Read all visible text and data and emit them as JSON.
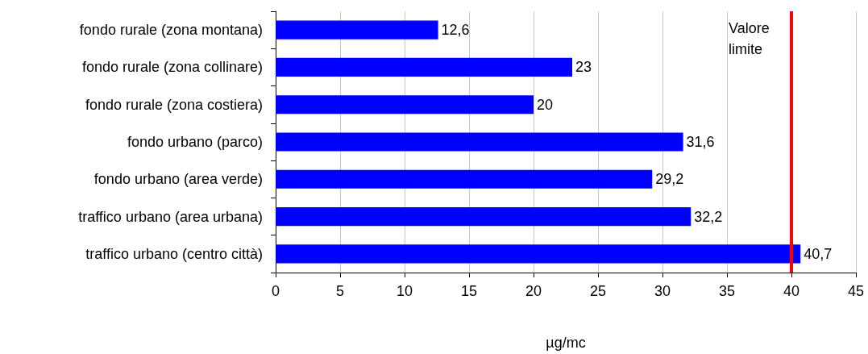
{
  "chart_data": {
    "type": "bar",
    "orientation": "horizontal",
    "xlabel": "µg/mc",
    "categories": [
      "fondo rurale (zona montana)",
      "fondo rurale (zona collinare)",
      "fondo rurale (zona costiera)",
      "fondo urbano (parco)",
      "fondo urbano (area verde)",
      "traffico urbano (area urbana)",
      "traffico urbano (centro città)"
    ],
    "values": [
      12.6,
      23,
      20,
      31.6,
      29.2,
      32.2,
      40.7
    ],
    "color": "#0000ff",
    "xlim": [
      0,
      45
    ],
    "xticks": [
      0,
      5,
      10,
      15,
      20,
      25,
      30,
      35,
      40,
      45
    ],
    "grid": "x",
    "value_labels": [
      "12,6",
      "23",
      "20",
      "31,6",
      "29,2",
      "32,2",
      "40,7"
    ],
    "ref_lines": [
      {
        "axis": "x",
        "value": 40,
        "label": "Valore limite",
        "color": "#ff0000"
      }
    ]
  }
}
